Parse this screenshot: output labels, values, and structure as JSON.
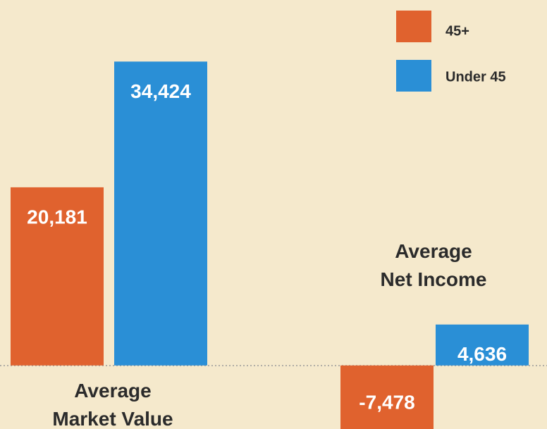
{
  "chart_data": {
    "type": "bar",
    "categories": [
      "Average\nMarket Value",
      "Average\nNet Income"
    ],
    "series": [
      {
        "name": "45+",
        "color": "#e0622e",
        "values": [
          20181,
          -7478
        ],
        "value_labels": [
          "20,181",
          "-7,478"
        ]
      },
      {
        "name": "Under 45",
        "color": "#2a8fd6",
        "values": [
          34424,
          4636
        ],
        "value_labels": [
          "34,424",
          "4,636"
        ]
      }
    ],
    "ylim": [
      -7200,
      41400
    ]
  }
}
